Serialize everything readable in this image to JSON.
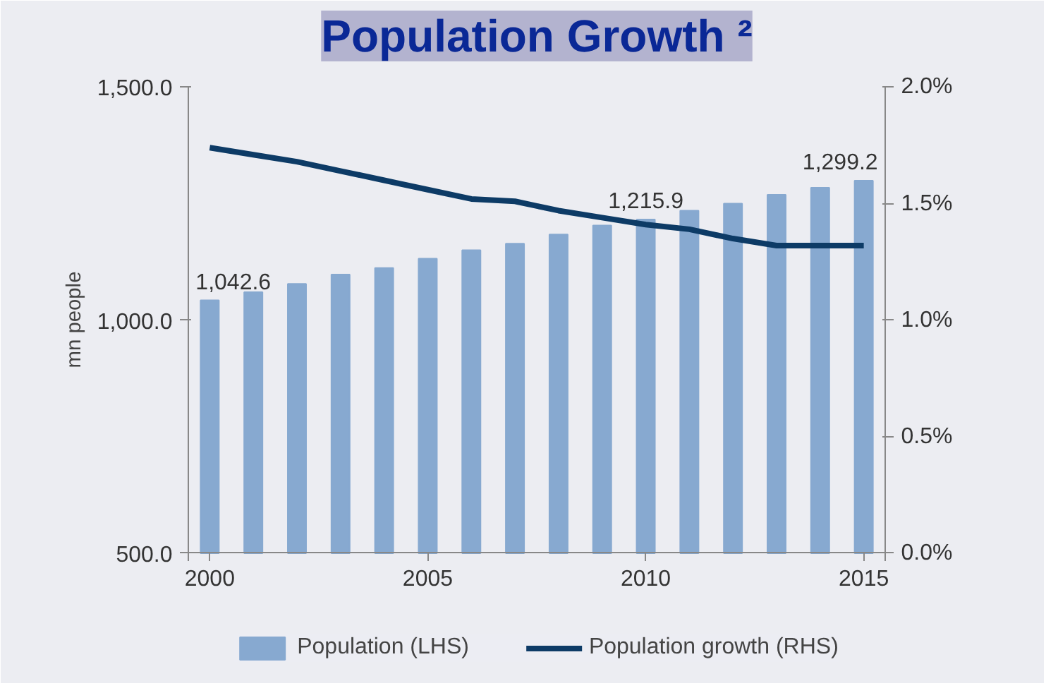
{
  "chart_data": {
    "type": "bar",
    "title": "Population Growth ²",
    "ylabel": "mn people",
    "x": [
      2000,
      2001,
      2002,
      2003,
      2004,
      2005,
      2006,
      2007,
      2008,
      2009,
      2010,
      2011,
      2012,
      2013,
      2014,
      2015
    ],
    "xlim": [
      1999.5,
      2015.5
    ],
    "xticks": [
      {
        "value": 1999.5,
        "label": null
      },
      {
        "value": 2000,
        "label": "2000"
      },
      {
        "value": 2005,
        "label": "2005"
      },
      {
        "value": 2010,
        "label": "2010"
      },
      {
        "value": 2015,
        "label": "2015"
      },
      {
        "value": 2015.5,
        "label": null
      }
    ],
    "ylim": [
      500,
      1500
    ],
    "yticks": [
      {
        "value": 500,
        "label": "500.0"
      },
      {
        "value": 1000,
        "label": "1,000.0"
      },
      {
        "value": 1500,
        "label": "1,500.0"
      }
    ],
    "y2lim": [
      0,
      2
    ],
    "y2ticks": [
      {
        "value": 0,
        "label": "0.0%"
      },
      {
        "value": 0.5,
        "label": "0.5%"
      },
      {
        "value": 1,
        "label": "1.0%"
      },
      {
        "value": 1.5,
        "label": "1.5%"
      },
      {
        "value": 2,
        "label": "2.0%"
      }
    ],
    "series": [
      {
        "name": "Population (LHS)",
        "color": "#87a9d0",
        "values": [
          1042.6,
          1060,
          1078,
          1098,
          1112,
          1132,
          1150,
          1164,
          1184,
          1203,
          1215.9,
          1235,
          1250,
          1269,
          1284,
          1299.2
        ],
        "value_labels": [
          "1,042.6",
          null,
          null,
          null,
          null,
          null,
          null,
          null,
          null,
          null,
          "1,215.9",
          null,
          null,
          null,
          null,
          "1,299.2"
        ]
      },
      {
        "name": "Population growth (RHS)",
        "type": "line",
        "axis": "y2",
        "color": "#0d3b66",
        "values": [
          1.74,
          1.71,
          1.68,
          1.64,
          1.6,
          1.56,
          1.52,
          1.51,
          1.47,
          1.44,
          1.41,
          1.39,
          1.35,
          1.32,
          1.32,
          1.32
        ]
      }
    ],
    "legend": "bottom",
    "grid": false
  }
}
